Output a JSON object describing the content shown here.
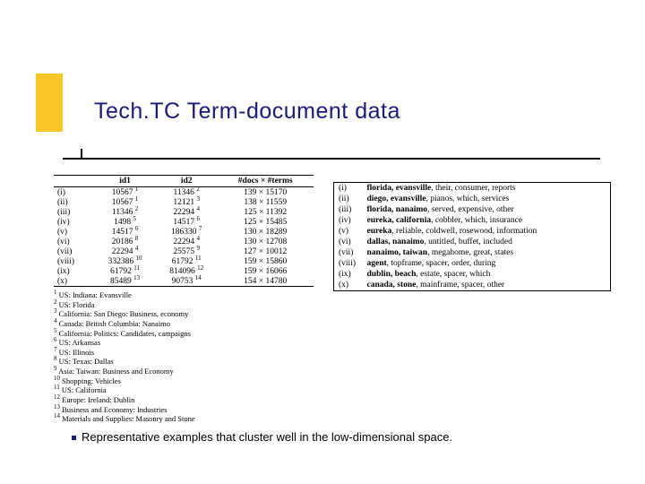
{
  "title": "Tech.TC Term-document data",
  "bullet": "Representative examples that cluster well in the low-dimensional space.",
  "dataTable": {
    "headers": [
      "",
      "id1",
      "id2",
      "#docs × #terms"
    ],
    "rows": [
      {
        "rn": "(i)",
        "id1": "10567",
        "s1": "1",
        "id2": "11346",
        "s2": "2",
        "dt": "139 × 15170"
      },
      {
        "rn": "(ii)",
        "id1": "10567",
        "s1": "1",
        "id2": "12121",
        "s2": "3",
        "dt": "138 × 11559"
      },
      {
        "rn": "(iii)",
        "id1": "11346",
        "s1": "2",
        "id2": "22294",
        "s2": "4",
        "dt": "125 × 11392"
      },
      {
        "rn": "(iv)",
        "id1": "1498",
        "s1": "5",
        "id2": "14517",
        "s2": "6",
        "dt": "125 × 15485"
      },
      {
        "rn": "(v)",
        "id1": "14517",
        "s1": "6",
        "id2": "186330",
        "s2": "7",
        "dt": "130 × 18289"
      },
      {
        "rn": "(vi)",
        "id1": "20186",
        "s1": "8",
        "id2": "22294",
        "s2": "4",
        "dt": "130 × 12708"
      },
      {
        "rn": "(vii)",
        "id1": "22294",
        "s1": "4",
        "id2": "25575",
        "s2": "9",
        "dt": "127 × 10012"
      },
      {
        "rn": "(viii)",
        "id1": "332386",
        "s1": "10",
        "id2": "61792",
        "s2": "11",
        "dt": "159 × 15860"
      },
      {
        "rn": "(ix)",
        "id1": "61792",
        "s1": "11",
        "id2": "814096",
        "s2": "12",
        "dt": "159 × 16066"
      },
      {
        "rn": "(x)",
        "id1": "85489",
        "s1": "13",
        "id2": "90753",
        "s2": "14",
        "dt": "154 × 14780"
      }
    ]
  },
  "footnotes": [
    "US: Indiana: Evansville",
    "US: Florida",
    "California: San Diego: Business, economy",
    "Canada: British Columbia: Nanaimo",
    "California: Politics: Candidates, campaigns",
    "US: Arkansas",
    "US: Illinois",
    "US: Texas: Dallas",
    "Asia: Taiwan: Business and Economy",
    "Shopping: Vehicles",
    "US: California",
    "Europe: Ireland: Dublin",
    "Business and Economy: Industries",
    "Materials and Supplies: Masonry and Stone"
  ],
  "terms": [
    {
      "rn": "(i)",
      "b": "florida, evansville",
      "rest": ", their, consumer, reports"
    },
    {
      "rn": "(ii)",
      "b": "diego, evansville",
      "rest": ", pianos, which, services"
    },
    {
      "rn": "(iii)",
      "b": "florida, nanaimo",
      "rest": ", served, expensive, other"
    },
    {
      "rn": "(iv)",
      "b": "eureka, california",
      "rest": ", cobbler, which, insurance"
    },
    {
      "rn": "(v)",
      "b": "eureka",
      "rest": ", reliable, coldwell, rosewood, information"
    },
    {
      "rn": "(vi)",
      "b": "dallas, nanaimo",
      "rest": ", untitled, buffet, included"
    },
    {
      "rn": "(vii)",
      "b": "nanaimo, taiwan",
      "rest": ", megahome, great, states"
    },
    {
      "rn": "(viii)",
      "b": "agent",
      "rest": ", topframe, spacer, order, during"
    },
    {
      "rn": "(ix)",
      "b": "dublin, beach",
      "rest": ", estate, spacer, which"
    },
    {
      "rn": "(x)",
      "b": "canada, stone",
      "rest": ", mainframe, spacer, other"
    }
  ]
}
